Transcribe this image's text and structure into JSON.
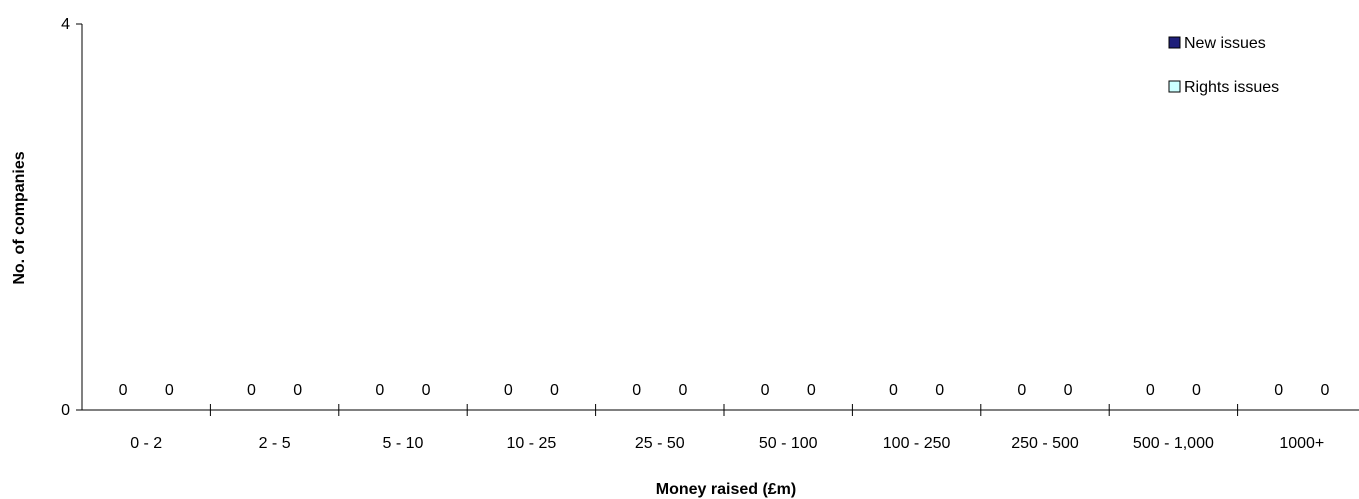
{
  "chart_data": {
    "type": "bar",
    "title": "",
    "xlabel": "Money raised (£m)",
    "ylabel": "No. of companies",
    "ylim": [
      0,
      4
    ],
    "y_ticks": [
      "0",
      "4"
    ],
    "categories": [
      "0 - 2",
      "2 - 5",
      "5 - 10",
      "10 - 25",
      "25 - 50",
      "50 - 100",
      "100 - 250",
      "250 - 500",
      "500 - 1,000",
      "1000+"
    ],
    "series": [
      {
        "name": "New issues",
        "color": "#1f1f7a",
        "values": [
          0,
          0,
          0,
          0,
          0,
          0,
          0,
          0,
          0,
          0
        ]
      },
      {
        "name": "Rights issues",
        "color": "#ccffff",
        "values": [
          0,
          0,
          0,
          0,
          0,
          0,
          0,
          0,
          0,
          0
        ]
      }
    ],
    "legend_position": "top-right",
    "grid": false
  }
}
